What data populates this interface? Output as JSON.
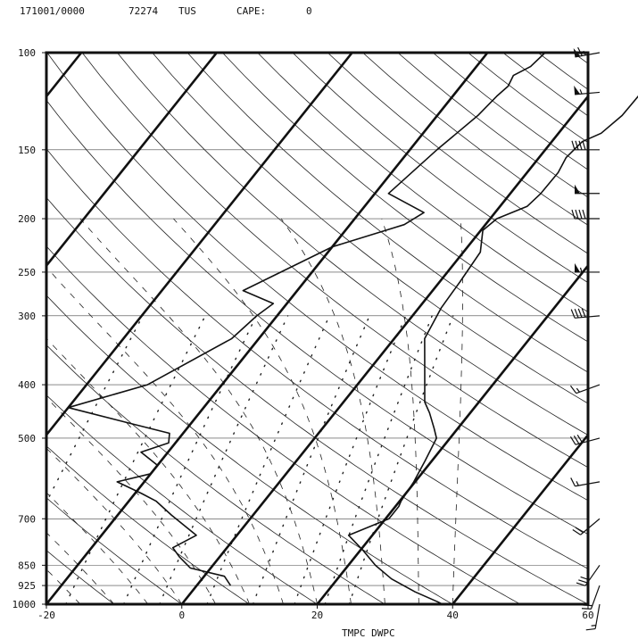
{
  "header": {
    "datetime": "171001/0000",
    "station_id": "72274",
    "station": "TUS",
    "cape_label": "CAPE:",
    "cape_value": "0"
  },
  "chart_data": {
    "type": "line",
    "subtype": "skew-t log-p sounding",
    "xlabel": "TMPC DWPC",
    "ylabel": "",
    "x_ticks": [
      "-20",
      "0",
      "20",
      "40",
      "60"
    ],
    "xlim": [
      -20,
      60
    ],
    "y_ticks": [
      "100",
      "150",
      "200",
      "250",
      "300",
      "400",
      "500",
      "700",
      "850",
      "925",
      "1000"
    ],
    "ylim": [
      1000,
      100
    ],
    "y_scale": "log",
    "series": [
      {
        "key": "temperature",
        "color": "#111111",
        "points": [
          [
            38.5,
            1000
          ],
          [
            37.5,
            990
          ],
          [
            33,
            950
          ],
          [
            28,
            900
          ],
          [
            24,
            850
          ],
          [
            20.5,
            800
          ],
          [
            16.5,
            750
          ],
          [
            20.5,
            700
          ],
          [
            20.5,
            665
          ],
          [
            20.2,
            650
          ],
          [
            19.8,
            600
          ],
          [
            19,
            550
          ],
          [
            18,
            500
          ],
          [
            16.5,
            480
          ],
          [
            14,
            450
          ],
          [
            12,
            430
          ],
          [
            8.5,
            380
          ],
          [
            4.5,
            330
          ],
          [
            3.3,
            290
          ],
          [
            3,
            260
          ],
          [
            2.5,
            230
          ],
          [
            0.3,
            210
          ],
          [
            1,
            200
          ],
          [
            4,
            190
          ],
          [
            4.5,
            180
          ],
          [
            4.6,
            165
          ],
          [
            4,
            155
          ],
          [
            4.5,
            145
          ],
          [
            6.3,
            140
          ],
          [
            7.3,
            130
          ],
          [
            7.4,
            120
          ],
          [
            8,
            115
          ],
          [
            9,
            105
          ],
          [
            8.8,
            100
          ]
        ]
      },
      {
        "key": "dewpoint",
        "color": "#111111",
        "points": [
          [
            5,
            925
          ],
          [
            3,
            890
          ],
          [
            -3,
            860
          ],
          [
            -6,
            820
          ],
          [
            -8,
            790
          ],
          [
            -6,
            750
          ],
          [
            -12,
            690
          ],
          [
            -16,
            650
          ],
          [
            -19,
            630
          ],
          [
            -24,
            600
          ],
          [
            -20,
            580
          ],
          [
            -20,
            560
          ],
          [
            -24,
            530
          ],
          [
            -21,
            510
          ],
          [
            -22,
            490
          ],
          [
            -29,
            470
          ],
          [
            -40,
            440
          ],
          [
            -31,
            400
          ],
          [
            -24,
            330
          ],
          [
            -23,
            300
          ],
          [
            -22,
            285
          ],
          [
            -28,
            270
          ],
          [
            -20,
            225
          ],
          [
            -12,
            205
          ],
          [
            -10.5,
            195
          ],
          [
            -18,
            180
          ],
          [
            -16,
            150
          ],
          [
            -14,
            130
          ],
          [
            -13.5,
            120
          ],
          [
            -13,
            115
          ],
          [
            -13.5,
            110
          ],
          [
            -12,
            106
          ],
          [
            -11.5,
            100
          ]
        ]
      }
    ],
    "winds": [
      {
        "p": 100,
        "dir": 260,
        "spd": 65
      },
      {
        "p": 118,
        "dir": 265,
        "spd": 55
      },
      {
        "p": 150,
        "dir": 270,
        "spd": 45
      },
      {
        "p": 180,
        "dir": 270,
        "spd": 50
      },
      {
        "p": 200,
        "dir": 270,
        "spd": 40
      },
      {
        "p": 250,
        "dir": 270,
        "spd": 55
      },
      {
        "p": 300,
        "dir": 265,
        "spd": 45
      },
      {
        "p": 400,
        "dir": 250,
        "spd": 15
      },
      {
        "p": 500,
        "dir": 255,
        "spd": 30
      },
      {
        "p": 600,
        "dir": 260,
        "spd": 15
      },
      {
        "p": 700,
        "dir": 230,
        "spd": 20
      },
      {
        "p": 850,
        "dir": 215,
        "spd": 30
      },
      {
        "p": 925,
        "dir": 200,
        "spd": 20
      },
      {
        "p": 1000,
        "dir": 190,
        "spd": 15
      }
    ],
    "grid": true
  }
}
